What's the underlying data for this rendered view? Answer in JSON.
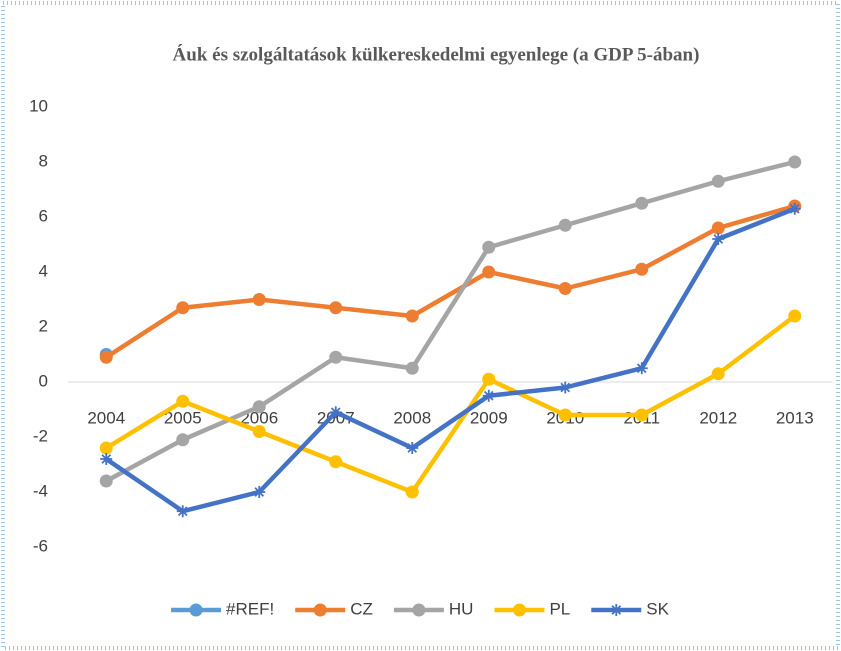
{
  "chart_data": {
    "type": "line",
    "title": "Áuk és szolgáltatások külkereskedelmi egyenlege  (a GDP 5-ában)",
    "categories": [
      "2004",
      "2005",
      "2006",
      "2007",
      "2008",
      "2009",
      "2010",
      "2011",
      "2012",
      "2013"
    ],
    "series": [
      {
        "name": "#REF!",
        "color": "#5b9bd5",
        "marker": "circle",
        "values": [
          1.0,
          null,
          null,
          null,
          null,
          null,
          null,
          null,
          null,
          null
        ]
      },
      {
        "name": "CZ",
        "color": "#ed7d31",
        "marker": "circle",
        "values": [
          0.9,
          2.7,
          3.0,
          2.7,
          2.4,
          4.0,
          3.4,
          4.1,
          5.6,
          6.4
        ]
      },
      {
        "name": "HU",
        "color": "#a5a5a5",
        "marker": "circle",
        "values": [
          -3.6,
          -2.1,
          -0.9,
          0.9,
          0.5,
          4.9,
          5.7,
          6.5,
          7.3,
          8.0
        ]
      },
      {
        "name": "PL",
        "color": "#ffc000",
        "marker": "circle",
        "values": [
          -2.4,
          -0.7,
          -1.8,
          -2.9,
          -4.0,
          0.1,
          -1.2,
          -1.2,
          0.3,
          2.4
        ]
      },
      {
        "name": "SK",
        "color": "#4472c4",
        "marker": "star",
        "values": [
          -2.8,
          -4.7,
          -4.0,
          -1.1,
          -2.4,
          -0.5,
          -0.2,
          0.5,
          5.2,
          6.3
        ]
      }
    ],
    "ylim": [
      -6,
      10
    ],
    "yticks": [
      -6,
      -4,
      -2,
      0,
      2,
      4,
      6,
      8,
      10
    ],
    "grid": false,
    "legend": "bottom"
  }
}
